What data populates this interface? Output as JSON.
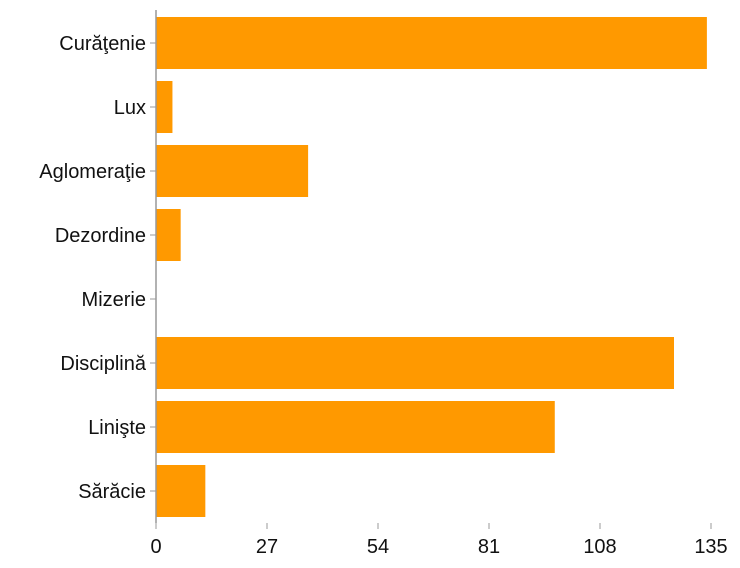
{
  "chart_data": {
    "type": "bar",
    "orientation": "horizontal",
    "categories": [
      "Curăţenie",
      "Lux",
      "Aglomeraţie",
      "Dezordine",
      "Mizerie",
      "Disciplină",
      "Linişte",
      "Sărăcie"
    ],
    "values": [
      134,
      4,
      37,
      6,
      0,
      126,
      97,
      12
    ],
    "xlim": [
      0,
      135
    ],
    "x_ticks": [
      "0",
      "27",
      "54",
      "81",
      "108",
      "135"
    ],
    "title": "",
    "xlabel": "",
    "ylabel": "",
    "grid": false,
    "legend": "none",
    "bar_color": "#ff9900",
    "axis_color": "#999999"
  }
}
